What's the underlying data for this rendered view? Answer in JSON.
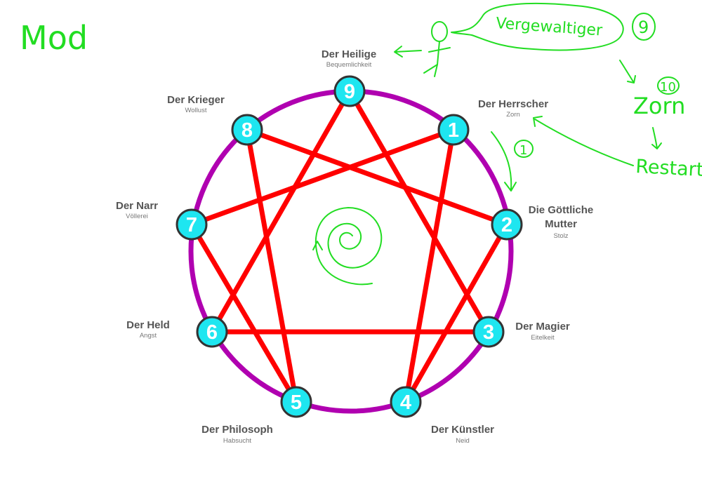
{
  "annotations": {
    "mod": "Mod",
    "speech": "Vergewaltiger",
    "circle_9": "9",
    "circle_10": "10",
    "zorn": "Zorn",
    "circle_1": "1",
    "restart": "Restart"
  },
  "colors": {
    "circle": "#b000b0",
    "lines": "#ff0000",
    "node_fill": "#1ee6f0",
    "node_stroke": "#333333",
    "annotation": "#22dd22"
  },
  "nodes": [
    {
      "num": "1",
      "name": "Der Herrscher",
      "sub": "Zorn"
    },
    {
      "num": "2",
      "name_lines": [
        "Die Göttliche",
        "Mutter"
      ],
      "sub": "Stolz"
    },
    {
      "num": "3",
      "name": "Der Magier",
      "sub": "Eitelkeit"
    },
    {
      "num": "4",
      "name": "Der Künstler",
      "sub": "Neid"
    },
    {
      "num": "5",
      "name": "Der Philosoph",
      "sub": "Habsucht"
    },
    {
      "num": "6",
      "name": "Der Held",
      "sub": "Angst"
    },
    {
      "num": "7",
      "name": "Der Narr",
      "sub": "Völlerei"
    },
    {
      "num": "8",
      "name": "Der Krieger",
      "sub": "Wollust"
    },
    {
      "num": "9",
      "name": "Der Heilige",
      "sub": "Bequemlichkeit"
    }
  ]
}
